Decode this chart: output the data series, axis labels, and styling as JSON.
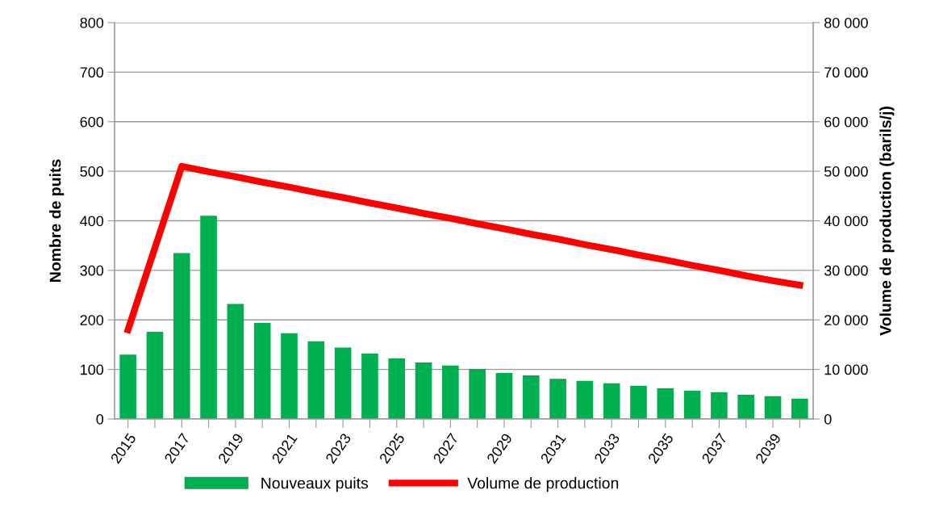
{
  "chart_data": {
    "type": "bar",
    "ylabel": "Nombre de puits",
    "y2label": "Volume de production (barils/j)",
    "categories": [
      "2015",
      null,
      "2017",
      null,
      "2019",
      null,
      "2021",
      null,
      "2023",
      null,
      "2025",
      null,
      "2027",
      null,
      "2029",
      null,
      "2031",
      null,
      "2033",
      null,
      "2035",
      null,
      "2037",
      null,
      "2039",
      null
    ],
    "series": [
      {
        "name": "Nouveaux puits",
        "color": "#00b050",
        "values": [
          130,
          176,
          335,
          410,
          232,
          194,
          173,
          157,
          144,
          132,
          122,
          114,
          108,
          101,
          93,
          88,
          81,
          77,
          72,
          67,
          62,
          57,
          54,
          49,
          46,
          41
        ]
      },
      {
        "name": "Volume de production",
        "type": "line",
        "axis": "y2",
        "color": "#ff0000",
        "values": [
          18000,
          34500,
          51000,
          49900,
          48900,
          47800,
          46800,
          45700,
          44700,
          43600,
          42600,
          41500,
          40500,
          39400,
          38400,
          37300,
          36300,
          35200,
          34200,
          33100,
          32100,
          31000,
          30000,
          28900,
          27900,
          27000
        ]
      }
    ],
    "ylim": [
      0,
      800
    ],
    "yticks": [
      0,
      100,
      200,
      300,
      400,
      500,
      600,
      700,
      800
    ],
    "y2lim": [
      0,
      80000
    ],
    "y2ticks": [
      0,
      {
        "value": 10000,
        "label": "10 000"
      },
      {
        "value": 20000,
        "label": "20 000"
      },
      {
        "value": 30000,
        "label": "30 000"
      },
      {
        "value": 40000,
        "label": "40 000"
      },
      {
        "value": 50000,
        "label": "50 000"
      },
      {
        "value": 60000,
        "label": "60 000"
      },
      {
        "value": 70000,
        "label": "70 000"
      },
      {
        "value": 80000,
        "label": "80 000"
      }
    ],
    "grid": "y",
    "legend": "bottom",
    "marker": "none",
    "line_style": "solid"
  }
}
